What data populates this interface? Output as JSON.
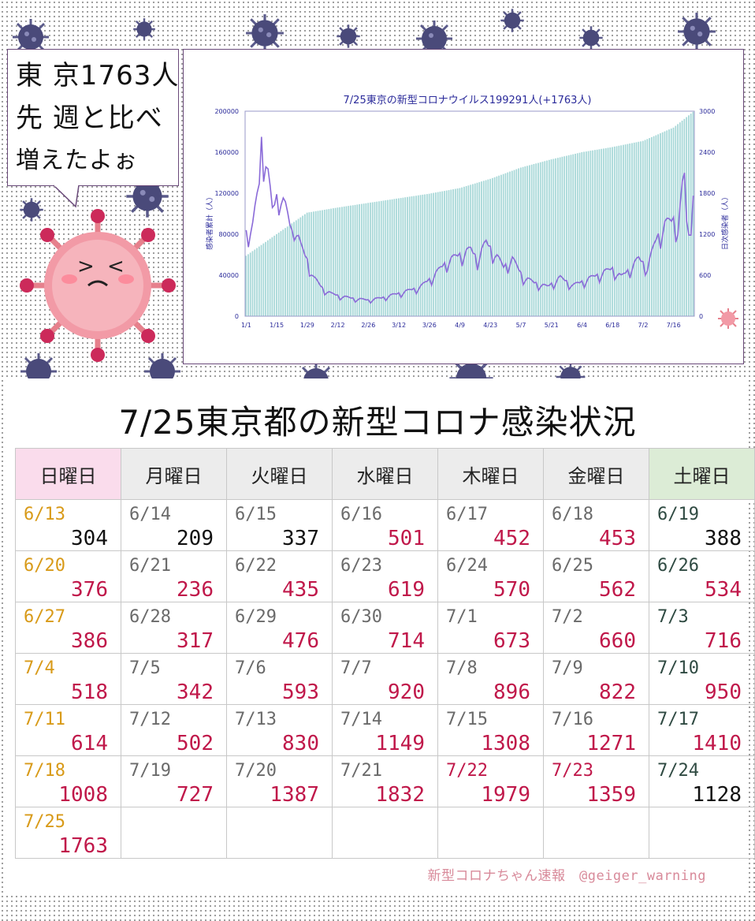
{
  "speech": {
    "lines": [
      "東 京1763人",
      "先 週と比べ",
      "増えたよぉ"
    ]
  },
  "chart_data": {
    "type": "bar",
    "title": "7/25東京の新型コロナウイルス199291人(+1763人)",
    "ylabel": "感染者累計（人）",
    "y2label": "日次感染者（人）",
    "ylim": [
      0,
      200000
    ],
    "y2lim": [
      0,
      3000
    ],
    "yticks": [
      0,
      40000,
      80000,
      120000,
      160000,
      200000
    ],
    "y2ticks": [
      0,
      600,
      1200,
      1800,
      2400,
      3000
    ],
    "xticks": [
      "1/1",
      "1/15",
      "1/29",
      "2/12",
      "2/26",
      "3/12",
      "3/26",
      "4/9",
      "4/23",
      "5/7",
      "5/21",
      "6/4",
      "6/18",
      "7/2",
      "7/16"
    ],
    "cumulative_anchors": [
      [
        0,
        59000
      ],
      [
        14,
        80000
      ],
      [
        28,
        101000
      ],
      [
        42,
        106000
      ],
      [
        56,
        110500
      ],
      [
        70,
        115000
      ],
      [
        84,
        119500
      ],
      [
        98,
        125000
      ],
      [
        112,
        134000
      ],
      [
        126,
        145000
      ],
      [
        140,
        153000
      ],
      [
        154,
        160000
      ],
      [
        168,
        165000
      ],
      [
        182,
        171000
      ],
      [
        196,
        184000
      ],
      [
        205,
        199291
      ]
    ],
    "daily_anchors": [
      [
        0,
        1200
      ],
      [
        3,
        1300
      ],
      [
        6,
        1900
      ],
      [
        7,
        2500
      ],
      [
        9,
        2300
      ],
      [
        12,
        1500
      ],
      [
        15,
        1800
      ],
      [
        18,
        1550
      ],
      [
        21,
        1200
      ],
      [
        22,
        1350
      ],
      [
        25,
        1000
      ],
      [
        28,
        800
      ],
      [
        31,
        550
      ],
      [
        35,
        400
      ],
      [
        39,
        320
      ],
      [
        44,
        280
      ],
      [
        50,
        250
      ],
      [
        56,
        230
      ],
      [
        62,
        260
      ],
      [
        68,
        310
      ],
      [
        74,
        360
      ],
      [
        80,
        420
      ],
      [
        86,
        580
      ],
      [
        92,
        780
      ],
      [
        98,
        880
      ],
      [
        103,
        950
      ],
      [
        106,
        820
      ],
      [
        110,
        1050
      ],
      [
        114,
        900
      ],
      [
        118,
        700
      ],
      [
        122,
        820
      ],
      [
        127,
        560
      ],
      [
        132,
        480
      ],
      [
        138,
        420
      ],
      [
        144,
        550
      ],
      [
        150,
        440
      ],
      [
        156,
        520
      ],
      [
        162,
        600
      ],
      [
        168,
        680
      ],
      [
        172,
        560
      ],
      [
        176,
        680
      ],
      [
        180,
        820
      ],
      [
        184,
        700
      ],
      [
        188,
        1100
      ],
      [
        192,
        1310
      ],
      [
        196,
        1380
      ],
      [
        198,
        1260
      ],
      [
        200,
        1830
      ],
      [
        201,
        1980
      ],
      [
        202,
        1360
      ],
      [
        203,
        1130
      ],
      [
        205,
        1763
      ]
    ]
  },
  "table": {
    "title": "7/25東京都の新型コロナ感染状況",
    "headers": [
      "日曜日",
      "月曜日",
      "火曜日",
      "水曜日",
      "木曜日",
      "金曜日",
      "土曜日"
    ],
    "rows": [
      [
        {
          "d": "6/13",
          "v": "304"
        },
        {
          "d": "6/14",
          "v": "209"
        },
        {
          "d": "6/15",
          "v": "337"
        },
        {
          "d": "6/16",
          "v": "501"
        },
        {
          "d": "6/17",
          "v": "452"
        },
        {
          "d": "6/18",
          "v": "453"
        },
        {
          "d": "6/19",
          "v": "388"
        }
      ],
      [
        {
          "d": "6/20",
          "v": "376"
        },
        {
          "d": "6/21",
          "v": "236"
        },
        {
          "d": "6/22",
          "v": "435"
        },
        {
          "d": "6/23",
          "v": "619"
        },
        {
          "d": "6/24",
          "v": "570"
        },
        {
          "d": "6/25",
          "v": "562"
        },
        {
          "d": "6/26",
          "v": "534"
        }
      ],
      [
        {
          "d": "6/27",
          "v": "386"
        },
        {
          "d": "6/28",
          "v": "317"
        },
        {
          "d": "6/29",
          "v": "476"
        },
        {
          "d": "6/30",
          "v": "714"
        },
        {
          "d": "7/1",
          "v": "673"
        },
        {
          "d": "7/2",
          "v": "660"
        },
        {
          "d": "7/3",
          "v": "716"
        }
      ],
      [
        {
          "d": "7/4",
          "v": "518"
        },
        {
          "d": "7/5",
          "v": "342"
        },
        {
          "d": "7/6",
          "v": "593"
        },
        {
          "d": "7/7",
          "v": "920"
        },
        {
          "d": "7/8",
          "v": "896"
        },
        {
          "d": "7/9",
          "v": "822"
        },
        {
          "d": "7/10",
          "v": "950"
        }
      ],
      [
        {
          "d": "7/11",
          "v": "614"
        },
        {
          "d": "7/12",
          "v": "502"
        },
        {
          "d": "7/13",
          "v": "830"
        },
        {
          "d": "7/14",
          "v": "1149"
        },
        {
          "d": "7/15",
          "v": "1308"
        },
        {
          "d": "7/16",
          "v": "1271"
        },
        {
          "d": "7/17",
          "v": "1410"
        }
      ],
      [
        {
          "d": "7/18",
          "v": "1008"
        },
        {
          "d": "7/19",
          "v": "727"
        },
        {
          "d": "7/20",
          "v": "1387"
        },
        {
          "d": "7/21",
          "v": "1832"
        },
        {
          "d": "7/22",
          "v": "1979"
        },
        {
          "d": "7/23",
          "v": "1359"
        },
        {
          "d": "7/24",
          "v": "1128"
        }
      ],
      [
        {
          "d": "7/25",
          "v": "1763"
        },
        {
          "d": "",
          "v": ""
        },
        {
          "d": "",
          "v": ""
        },
        {
          "d": "",
          "v": ""
        },
        {
          "d": "",
          "v": ""
        },
        {
          "d": "",
          "v": ""
        },
        {
          "d": "",
          "v": ""
        }
      ]
    ]
  },
  "footer": {
    "text": "新型コロナちゃん速報　@geiger_warning"
  },
  "colors": {
    "bar": "#a8d8d8",
    "line": "#8a6ad8",
    "value_high": "#c0184a",
    "sunday_date": "#d89a18"
  }
}
